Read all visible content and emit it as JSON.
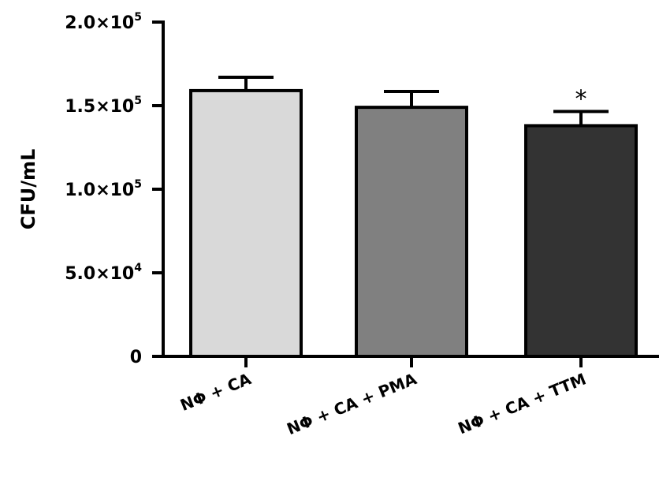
{
  "chart_data": {
    "type": "bar",
    "ylabel": "CFU/mL",
    "xlabel": "",
    "ylim": [
      0,
      200000
    ],
    "yticks": [
      {
        "value": 0,
        "mantissa": "0",
        "times": "",
        "base": "",
        "exponent": ""
      },
      {
        "value": 50000,
        "mantissa": "5.0",
        "times": "×",
        "base": "10",
        "exponent": "4"
      },
      {
        "value": 100000,
        "mantissa": "1.0",
        "times": "×",
        "base": "10",
        "exponent": "5"
      },
      {
        "value": 150000,
        "mantissa": "1.5",
        "times": "×",
        "base": "10",
        "exponent": "5"
      },
      {
        "value": 200000,
        "mantissa": "2.0",
        "times": "×",
        "base": "10",
        "exponent": "5"
      }
    ],
    "categories": [
      "NΦ + CA",
      "NΦ + CA + PMA",
      "NΦ + CA + TTM"
    ],
    "values": [
      159000,
      149000,
      138000
    ],
    "errors": [
      8000,
      9500,
      8500
    ],
    "colors": [
      "#d9d9d9",
      "#808080",
      "#333333"
    ],
    "annotations": [
      "",
      "",
      "*"
    ],
    "grid": false
  }
}
